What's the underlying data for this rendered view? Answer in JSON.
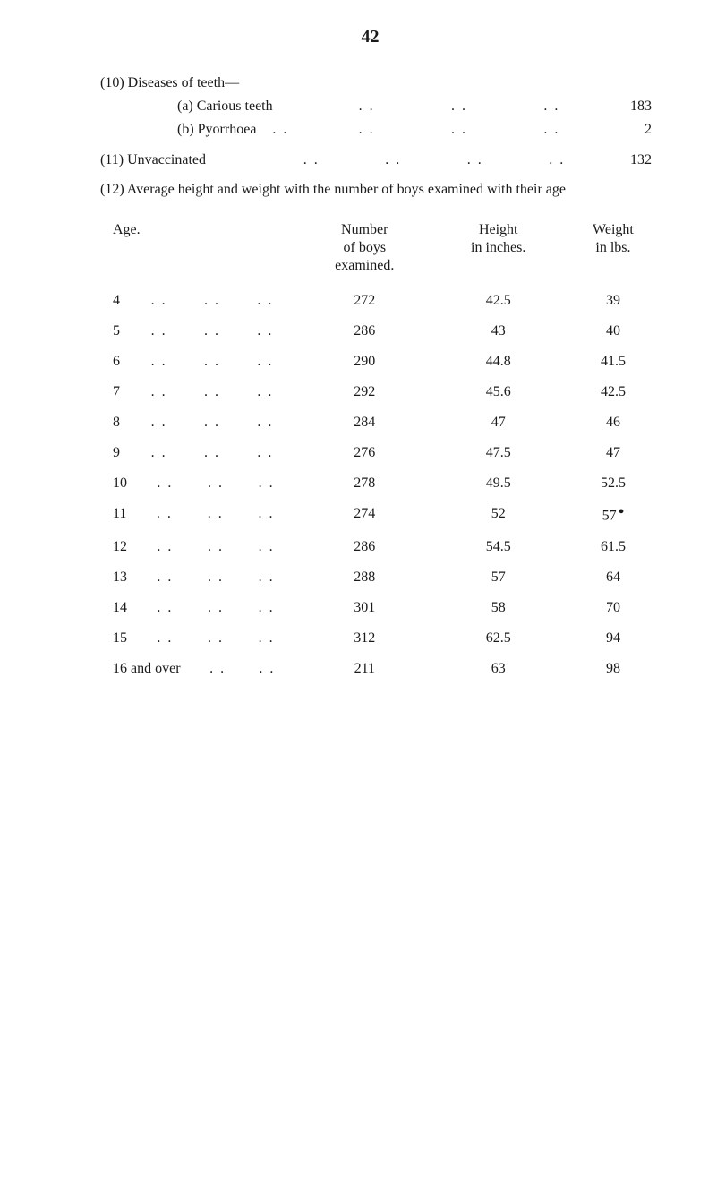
{
  "page_number": "42",
  "items": {
    "item10": {
      "label": "(10) Diseases of teeth—",
      "sub_a": {
        "label": "(a) Carious teeth",
        "value": "183"
      },
      "sub_b": {
        "label": "(b) Pyorrhoea",
        "value": "2"
      }
    },
    "item11": {
      "label": "(11) Unvaccinated",
      "value": "132"
    },
    "item12": {
      "text": "(12) Average height and weight with the number of boys examined with their age"
    }
  },
  "table": {
    "headers": {
      "age": "Age.",
      "number": "Number\nof boys\nexamined.",
      "height": "Height\nin inches.",
      "weight": "Weight\nin lbs."
    },
    "rows": [
      {
        "age": "4",
        "number": "272",
        "height": "42.5",
        "weight": "39"
      },
      {
        "age": "5",
        "number": "286",
        "height": "43",
        "weight": "40"
      },
      {
        "age": "6",
        "number": "290",
        "height": "44.8",
        "weight": "41.5"
      },
      {
        "age": "7",
        "number": "292",
        "height": "45.6",
        "weight": "42.5"
      },
      {
        "age": "8",
        "number": "284",
        "height": "47",
        "weight": "46"
      },
      {
        "age": "9",
        "number": "276",
        "height": "47.5",
        "weight": "47"
      },
      {
        "age": "10",
        "number": "278",
        "height": "49.5",
        "weight": "52.5"
      },
      {
        "age": "11",
        "number": "274",
        "height": "52",
        "weight": "57",
        "weight_mark": "●"
      },
      {
        "age": "12",
        "number": "286",
        "height": "54.5",
        "weight": "61.5"
      },
      {
        "age": "13",
        "number": "288",
        "height": "57",
        "weight": "64"
      },
      {
        "age": "14",
        "number": "301",
        "height": "58",
        "weight": "70"
      },
      {
        "age": "15",
        "number": "312",
        "height": "62.5",
        "weight": "94"
      },
      {
        "age": "16 and over",
        "number": "211",
        "height": "63",
        "weight": "98"
      }
    ]
  },
  "dots2": ". .",
  "leader_counts": {
    "sub_a_gap": 3,
    "sub_b_gap": 3,
    "item11_gap": 4,
    "age_gap_default": 3,
    "age_gap_over": 2
  }
}
